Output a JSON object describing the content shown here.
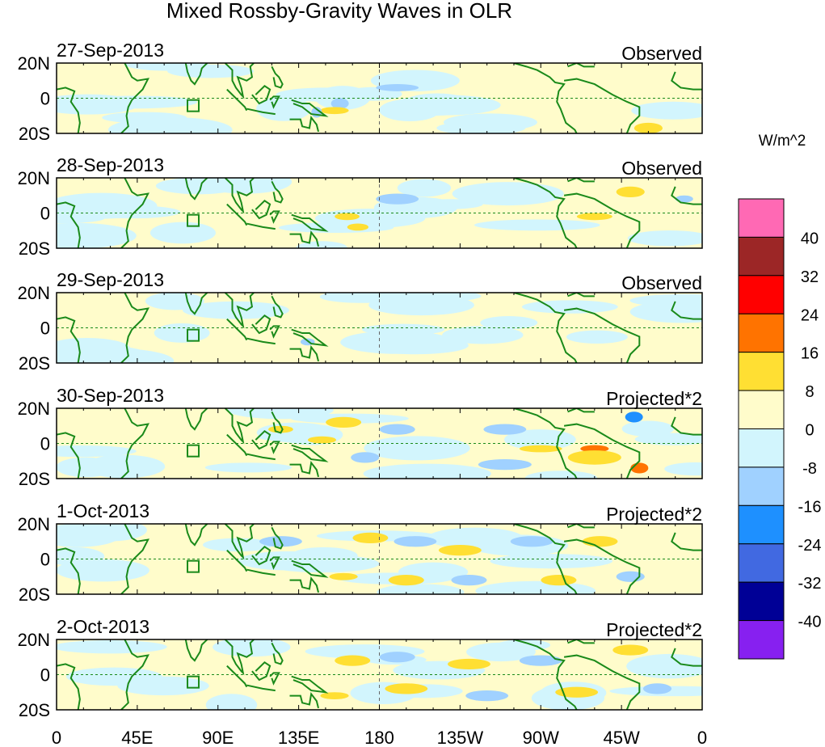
{
  "chart_data": {
    "type": "heatmap",
    "title": "Mixed Rossby-Gravity Waves in OLR",
    "units_label": "W/m^2",
    "panels": [
      {
        "date": "27-Sep-2013",
        "kind": "Observed"
      },
      {
        "date": "28-Sep-2013",
        "kind": "Observed"
      },
      {
        "date": "29-Sep-2013",
        "kind": "Observed"
      },
      {
        "date": "30-Sep-2013",
        "kind": "Projected*2"
      },
      {
        "date": "1-Oct-2013",
        "kind": "Projected*2"
      },
      {
        "date": "2-Oct-2013",
        "kind": "Projected*2"
      }
    ],
    "y_ticks": [
      "20N",
      "0",
      "20S"
    ],
    "x_ticks": [
      "0",
      "45E",
      "90E",
      "135E",
      "180",
      "135W",
      "90W",
      "45W",
      "0"
    ],
    "lon_range": [
      0,
      360
    ],
    "lat_range": [
      -20,
      20
    ],
    "colorbar": {
      "levels": [
        "40",
        "32",
        "24",
        "16",
        "8",
        "0",
        "-8",
        "-16",
        "-24",
        "-32",
        "-40"
      ],
      "colors": [
        "#FF69B4",
        "#9C2626",
        "#FF0000",
        "#FF7300",
        "#FFDF33",
        "#FFFCCB",
        "#D2F5FD",
        "#A0D1FF",
        "#1E90FF",
        "#4169E1",
        "#000096",
        "#8720F0"
      ]
    }
  }
}
